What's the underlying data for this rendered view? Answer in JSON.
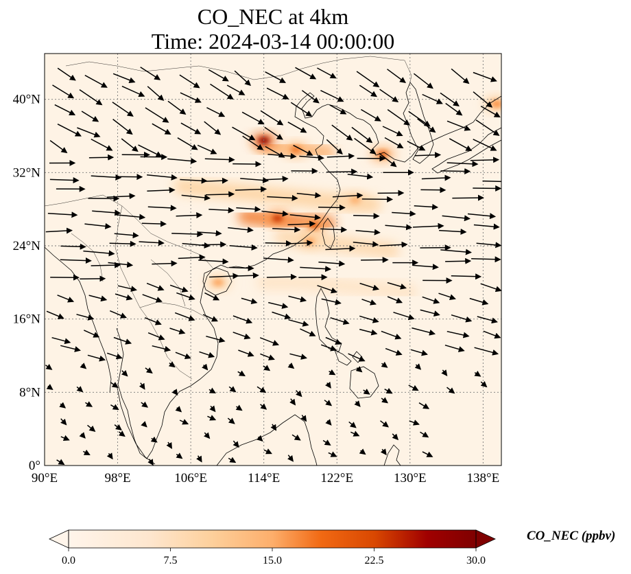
{
  "title": "CO_NEC at 4km",
  "subtitle": "Time: 2024-03-14 00:00:00",
  "map": {
    "extent": {
      "lon_min": 90,
      "lon_max": 140,
      "lat_min": 0,
      "lat_max": 45
    },
    "lon_ticks": [
      {
        "value": 90,
        "label": "90°E"
      },
      {
        "value": 98,
        "label": "98°E"
      },
      {
        "value": 106,
        "label": "106°E"
      },
      {
        "value": 114,
        "label": "114°E"
      },
      {
        "value": 122,
        "label": "122°E"
      },
      {
        "value": 130,
        "label": "130°E"
      },
      {
        "value": 138,
        "label": "138°E"
      }
    ],
    "lat_ticks": [
      {
        "value": 0,
        "label": "0°"
      },
      {
        "value": 8,
        "label": "8°N"
      },
      {
        "value": 16,
        "label": "16°N"
      },
      {
        "value": 24,
        "label": "24°N"
      },
      {
        "value": 32,
        "label": "32°N"
      },
      {
        "value": 40,
        "label": "40°N"
      }
    ],
    "gridlines": true,
    "field": "CO_NEC",
    "colormap": [
      "#fff5eb",
      "#fdd09c",
      "#fd8d3c",
      "#d94801",
      "#a00000",
      "#7f0000"
    ],
    "hotspots": [
      {
        "lon": 114.0,
        "lat": 35.5,
        "value": 28
      },
      {
        "lon": 115.5,
        "lat": 27.0,
        "value": 20
      },
      {
        "lon": 119.5,
        "lat": 26.2,
        "value": 16
      },
      {
        "lon": 117.5,
        "lat": 34.5,
        "value": 14
      },
      {
        "lon": 127.0,
        "lat": 34.0,
        "value": 16
      },
      {
        "lon": 109.0,
        "lat": 20.0,
        "value": 10
      },
      {
        "lon": 139.5,
        "lat": 39.5,
        "value": 12
      },
      {
        "lon": 124.0,
        "lat": 29.0,
        "value": 9
      },
      {
        "lon": 119.0,
        "lat": 24.5,
        "value": 10
      }
    ],
    "plumes": [
      {
        "lon": [
          105,
          110,
          115,
          120,
          126
        ],
        "lat": [
          30.5,
          30.0,
          29.5,
          29.0,
          28.5
        ],
        "value": 6
      },
      {
        "lon": [
          112,
          115,
          118,
          121
        ],
        "lat": [
          27.2,
          26.9,
          26.6,
          26.4
        ],
        "value": 14
      },
      {
        "lon": [
          114,
          118,
          121
        ],
        "lat": [
          34.8,
          34.5,
          34.2
        ],
        "value": 9
      },
      {
        "lon": [
          116,
          120,
          124,
          128
        ],
        "lat": [
          25.0,
          24.5,
          24.0,
          23.5
        ],
        "value": 5
      },
      {
        "lon": [
          114,
          118,
          124,
          130
        ],
        "lat": [
          20.0,
          20.0,
          19.5,
          19.0
        ],
        "value": 3
      }
    ],
    "wind_vectors": "eastward at mid-latitudes, south-eastward in the north, weak northerly over the South China Sea"
  },
  "colorbar": {
    "label": "CO_NEC (ppbv)",
    "vmin": 0,
    "vmax": 30,
    "extend": "both",
    "ticks": [
      {
        "value": 0,
        "label": "0.0"
      },
      {
        "value": 7.5,
        "label": "7.5"
      },
      {
        "value": 15,
        "label": "15.0"
      },
      {
        "value": 22.5,
        "label": "22.5"
      },
      {
        "value": 30,
        "label": "30.0"
      }
    ]
  }
}
